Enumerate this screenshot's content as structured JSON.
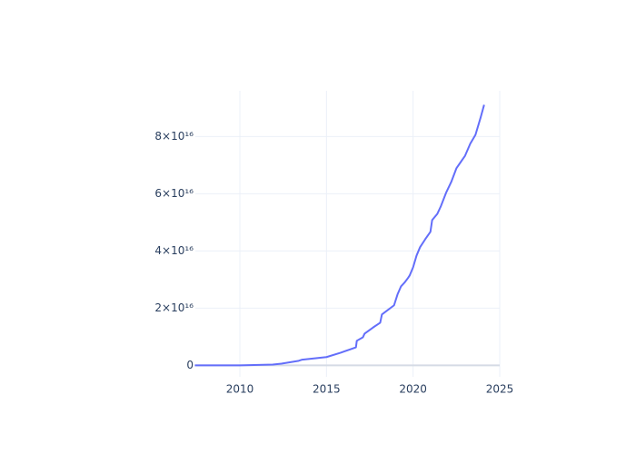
{
  "chart_data": {
    "type": "line",
    "x": [
      2007.4,
      2010,
      2011.9,
      2012.4,
      2013.4,
      2013.6,
      2015,
      2015.8,
      2016.7,
      2016.75,
      2017.1,
      2017.2,
      2017.7,
      2018.1,
      2018.2,
      2018.9,
      2019.1,
      2019.3,
      2019.5,
      2019.7,
      2019.8,
      2020.0,
      2020.2,
      2020.4,
      2020.7,
      2021.0,
      2021.1,
      2021.4,
      2021.6,
      2021.9,
      2022.2,
      2022.5,
      2023.0,
      2023.3,
      2023.6,
      2023.9,
      2024.1
    ],
    "series": [
      {
        "color": "#636efa",
        "values": [
          0,
          0,
          300000000000000.0,
          600000000000000.0,
          1600000000000000.0,
          2000000000000000.0,
          2900000000000000.0,
          4400000000000000.0,
          6300000000000000.0,
          8600000000000000.0,
          9800000000000000.0,
          1.11e+16,
          1.33e+16,
          1.49e+16,
          1.78e+16,
          2.1e+16,
          2.48e+16,
          2.76e+16,
          2.89e+16,
          3.05e+16,
          3.14e+16,
          3.43e+16,
          3.84e+16,
          4.13e+16,
          4.41e+16,
          4.67e+16,
          5.08e+16,
          5.3e+16,
          5.56e+16,
          6.03e+16,
          6.41e+16,
          6.89e+16,
          7.33e+16,
          7.75e+16,
          8.06e+16,
          8.67e+16,
          9.11e+16
        ]
      }
    ],
    "xlim": [
      2007.43,
      2025
    ],
    "xticks": [
      2010,
      2015,
      2020,
      2025
    ],
    "ylim": [
      -4000000000000000.0,
      9.6e+16
    ],
    "yticks": [
      0,
      {
        "value": 2e+16,
        "label": "2×10¹⁶"
      },
      {
        "value": 4e+16,
        "label": "4×10¹⁶"
      },
      {
        "value": 6e+16,
        "label": "6×10¹⁶"
      },
      {
        "value": 8e+16,
        "label": "8×10¹⁶"
      }
    ],
    "grid": true
  }
}
